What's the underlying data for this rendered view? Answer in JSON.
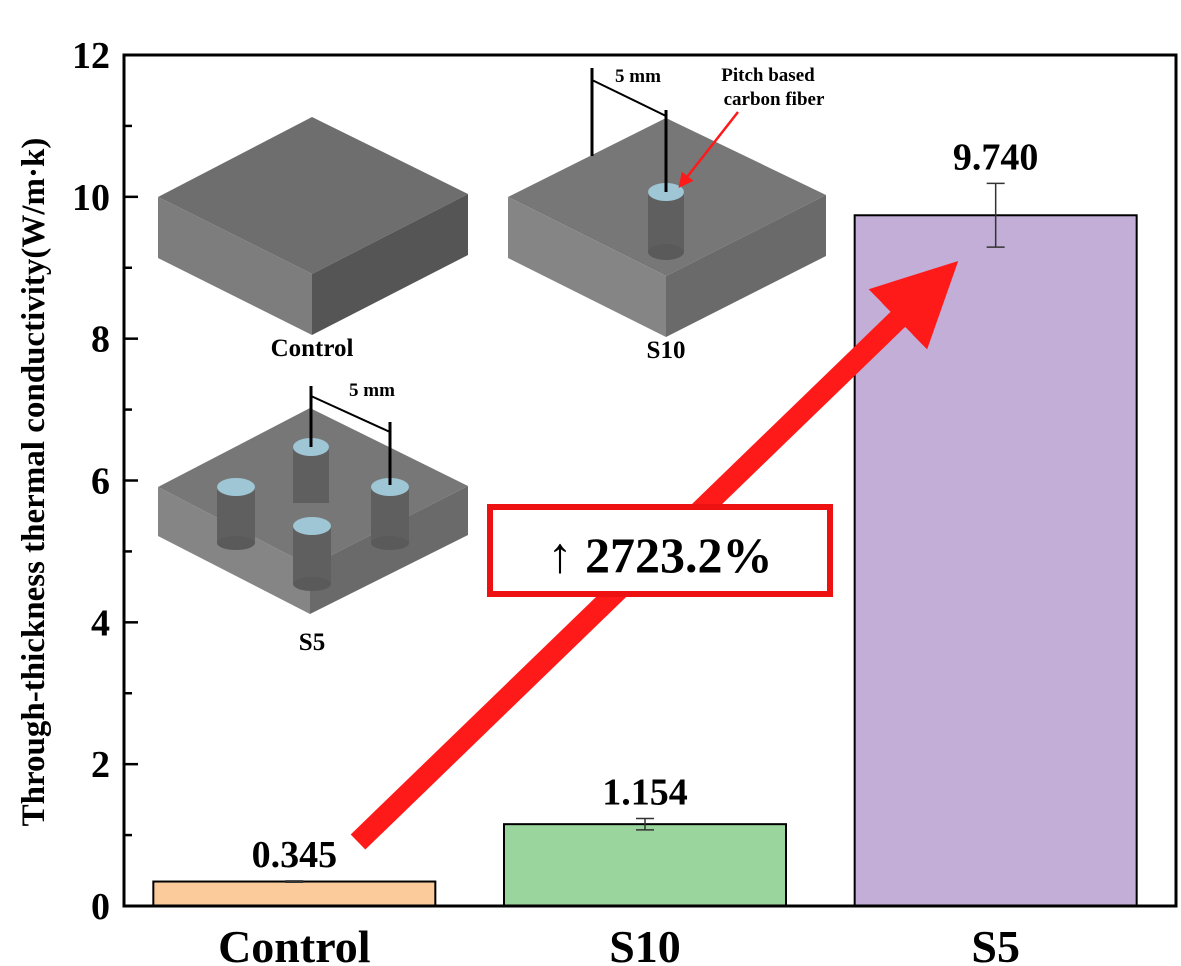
{
  "chart_data": {
    "type": "bar",
    "title": "",
    "xlabel": "",
    "ylabel": "Through-thickness thermal conductivity(W/m·k)",
    "ylim": [
      0,
      12
    ],
    "yticks": [
      "0",
      "2",
      "4",
      "6",
      "8",
      "10",
      "12"
    ],
    "categories": [
      "Control",
      "S10",
      "S5"
    ],
    "values": [
      0.345,
      1.154,
      9.74
    ],
    "value_labels": [
      "0.345",
      "1.154",
      "9.740"
    ],
    "errors": [
      0.01,
      0.08,
      0.45
    ],
    "colors": [
      "#fccb9c",
      "#9ad59d",
      "#c2aed6"
    ],
    "grid": false,
    "annotation": {
      "text": "↑ 2723.2%",
      "arrow_color": "#ff1a1a",
      "box_color": "#ee1111"
    },
    "insets": {
      "control_label": "Control",
      "s10_label": "S10",
      "s5_label": "S5",
      "spacing_label_s10": "5 mm",
      "spacing_label_s5": "5 mm",
      "fiber_label_line1": "Pitch based",
      "fiber_label_line2": "carbon fiber"
    }
  }
}
